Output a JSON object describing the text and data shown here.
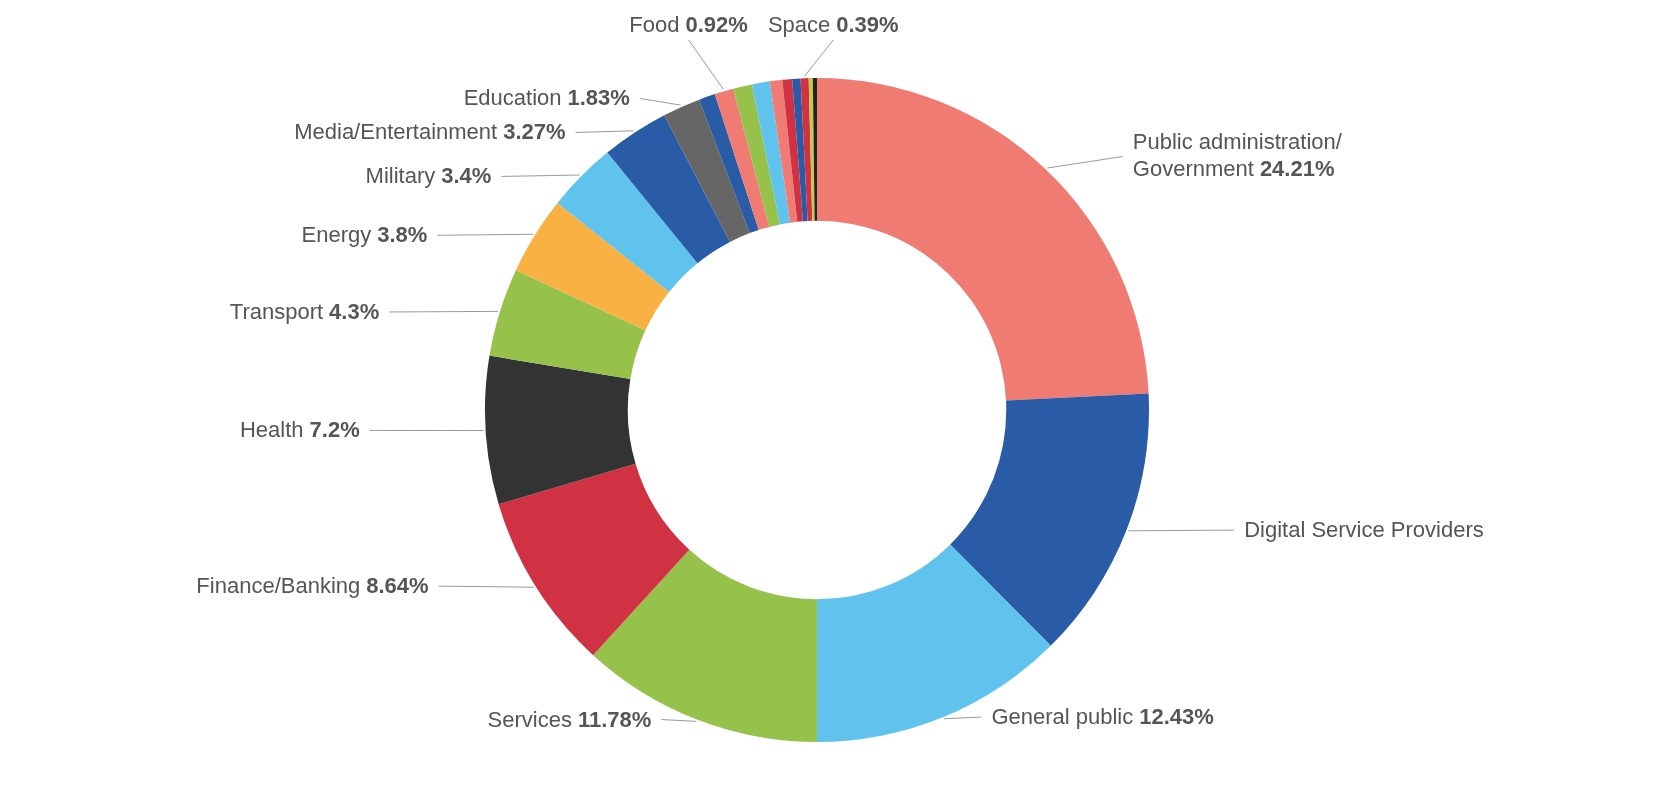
{
  "chart_data": {
    "type": "donut",
    "categories": [
      "Public administration/ Government",
      "Digital Service Providers",
      "General public",
      "Services",
      "Finance/Banking",
      "Health",
      "Transport",
      "Energy",
      "Military",
      "Media/Entertainment",
      "Education",
      null,
      "Food",
      null,
      null,
      null,
      null,
      null,
      "Space",
      null,
      null
    ],
    "values": [
      24.21,
      13.36,
      12.43,
      11.78,
      8.64,
      7.2,
      4.3,
      3.8,
      3.4,
      3.27,
      1.83,
      0.8,
      0.92,
      0.92,
      0.87,
      0.6,
      0.48,
      0.4,
      0.39,
      0.2,
      0.2
    ],
    "value_labels": [
      "24.21%",
      null,
      "12.43%",
      "11.78%",
      "8.64%",
      "7.2%",
      "4.3%",
      "3.8%",
      "3.4%",
      "3.27%",
      "1.83%",
      null,
      "0.92%",
      null,
      null,
      null,
      null,
      null,
      "0.39%",
      null,
      null
    ],
    "colors": [
      "#ef7b73",
      "#2a5ba6",
      "#60c3ee",
      "#96c24b",
      "#d03244",
      "#333333",
      "#96c24b",
      "#f8b142",
      "#60c3ee",
      "#2a5ba6",
      "#666666",
      "#2a5ba6",
      "#ef7b73",
      "#96c24b",
      "#60c3ee",
      "#ef7b73",
      "#d03244",
      "#2a5ba6",
      "#d03244",
      "#c8c84a",
      "#222222"
    ]
  }
}
